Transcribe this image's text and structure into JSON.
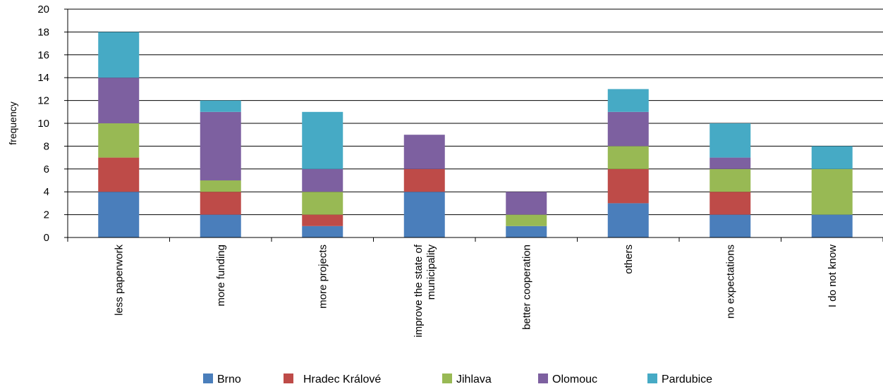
{
  "chart_data": {
    "type": "bar",
    "stacked": true,
    "title": "",
    "xlabel": "",
    "ylabel": "frequency",
    "ylim": [
      0,
      20
    ],
    "yticks": [
      0,
      2,
      4,
      6,
      8,
      10,
      12,
      14,
      16,
      18,
      20
    ],
    "grid": true,
    "legend_position": "bottom",
    "categories": [
      [
        "less paperwork"
      ],
      [
        "more funding"
      ],
      [
        "more projects"
      ],
      [
        "improve the state of",
        "municipality"
      ],
      [
        "better cooperation"
      ],
      [
        "others"
      ],
      [
        "no expectations"
      ],
      [
        "I do not know"
      ]
    ],
    "series": [
      {
        "name": "Brno",
        "color": "#4a7ebb",
        "values": [
          4,
          2,
          1,
          4,
          1,
          3,
          2,
          2
        ]
      },
      {
        "name": "Hradec Králové",
        "color": "#be4b48",
        "values": [
          3,
          2,
          1,
          2,
          0,
          3,
          2,
          0
        ]
      },
      {
        "name": "Jihlava",
        "color": "#98b954",
        "values": [
          3,
          1,
          2,
          0,
          1,
          2,
          2,
          4
        ]
      },
      {
        "name": "Olomouc",
        "color": "#7d60a0",
        "values": [
          4,
          6,
          2,
          3,
          2,
          3,
          1,
          0
        ]
      },
      {
        "name": "Pardubice",
        "color": "#46aac5",
        "values": [
          4,
          1,
          5,
          0,
          0,
          2,
          3,
          2
        ]
      }
    ]
  }
}
